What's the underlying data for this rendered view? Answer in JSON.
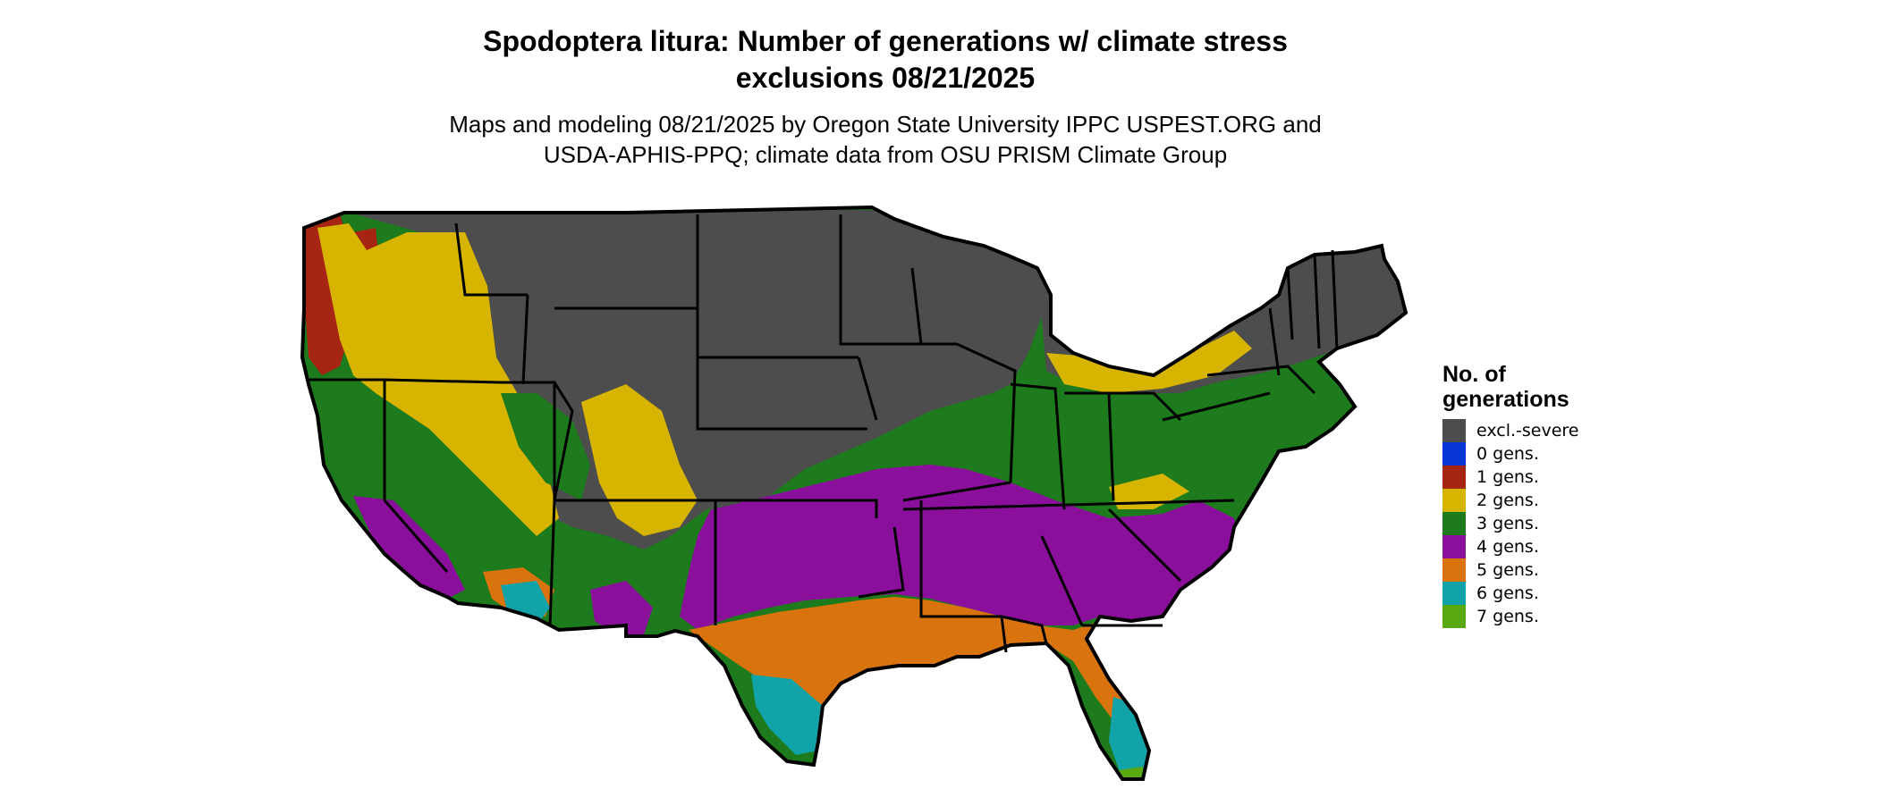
{
  "title_line1": "Spodoptera litura: Number of generations w/ climate stress",
  "title_line2": "exclusions 08/21/2025",
  "subtitle_line1": "Maps and modeling 08/21/2025 by Oregon State University IPPC USPEST.ORG and",
  "subtitle_line2": "USDA-APHIS-PPQ; climate data from OSU PRISM Climate Group",
  "legend": {
    "title_line1": "No. of",
    "title_line2": "generations",
    "items": [
      {
        "label": "excl.-severe",
        "color": "#4d4d4d"
      },
      {
        "label": "0 gens.",
        "color": "#0a35d6"
      },
      {
        "label": "1 gens.",
        "color": "#a52512"
      },
      {
        "label": "2 gens.",
        "color": "#d6b400"
      },
      {
        "label": "3 gens.",
        "color": "#1d7a1d"
      },
      {
        "label": "4 gens.",
        "color": "#8a0f9a"
      },
      {
        "label": "5 gens.",
        "color": "#d9730d"
      },
      {
        "label": "6 gens.",
        "color": "#12a3a8"
      },
      {
        "label": "7 gens.",
        "color": "#5aa80f"
      }
    ]
  }
}
